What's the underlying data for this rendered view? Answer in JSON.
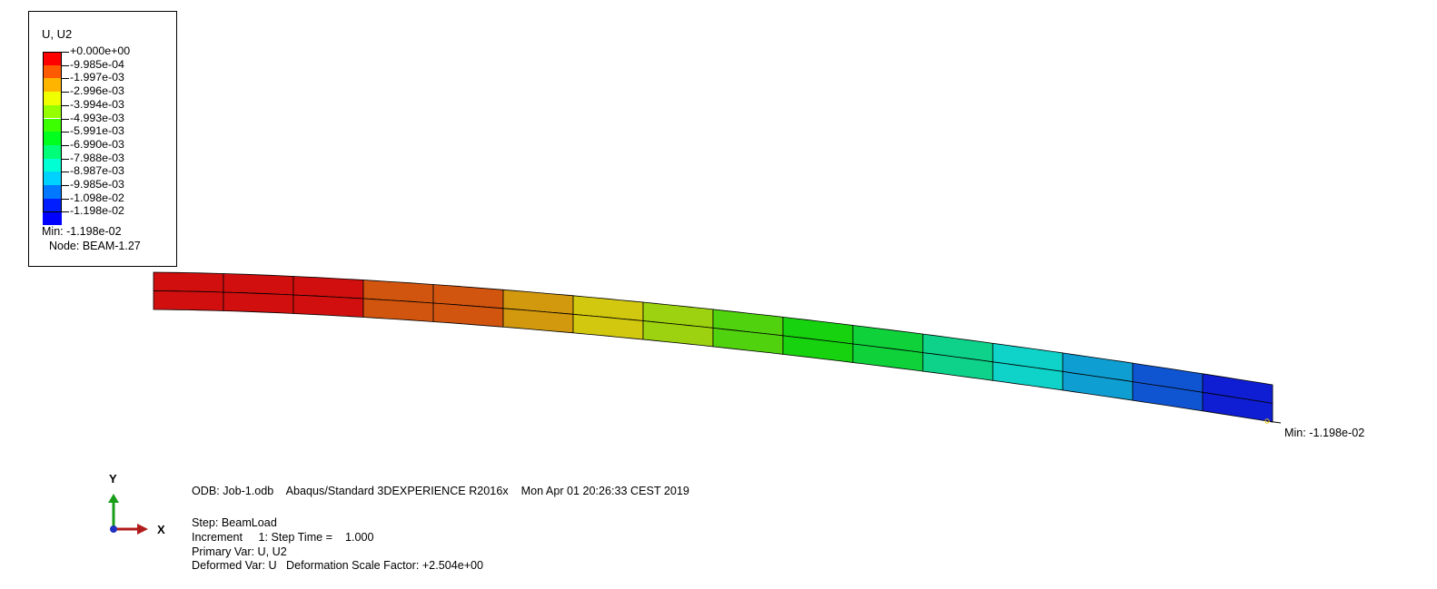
{
  "legend": {
    "title": "U, U2",
    "entries": [
      {
        "label": "+0.000e+00",
        "color": "#ff0000"
      },
      {
        "label": "-9.985e-04",
        "color": "#ff5a00"
      },
      {
        "label": "-1.997e-03",
        "color": "#ffb400"
      },
      {
        "label": "-2.996e-03",
        "color": "#f0ff00"
      },
      {
        "label": "-3.994e-03",
        "color": "#96ff00"
      },
      {
        "label": "-4.993e-03",
        "color": "#3cff00"
      },
      {
        "label": "-5.991e-03",
        "color": "#00ff1e"
      },
      {
        "label": "-6.990e-03",
        "color": "#00ff78"
      },
      {
        "label": "-7.988e-03",
        "color": "#00ffd2"
      },
      {
        "label": "-8.987e-03",
        "color": "#00d2ff"
      },
      {
        "label": "-9.985e-03",
        "color": "#0078ff"
      },
      {
        "label": "-1.098e-02",
        "color": "#001eff"
      },
      {
        "label": "-1.198e-02",
        "color": "#0000ff"
      }
    ],
    "min_text": "Min: -1.198e-02",
    "node_text": "Node: BEAM-1.27"
  },
  "beam": {
    "element_colors": [
      "#d20f0f",
      "#d20f0f",
      "#d20f0f",
      "#d2550f",
      "#d2550f",
      "#d2990f",
      "#d2c80f",
      "#9cd20f",
      "#50d20f",
      "#17d20f",
      "#0fd23a",
      "#0fd28a",
      "#0fd2c8",
      "#0f9ed2",
      "#0f55d2",
      "#0f1ed2"
    ],
    "min_annotation": "Min: -1.198e-02"
  },
  "triad": {
    "x_label": "X",
    "y_label": "Y"
  },
  "info": {
    "odb_line": "ODB: Job-1.odb    Abaqus/Standard 3DEXPERIENCE R2016x    Mon Apr 01 20:26:33 CEST 2019",
    "step_line": "Step: BeamLoad",
    "increment_line": "Increment     1: Step Time =    1.000",
    "primary_line": "Primary Var: U, U2",
    "deformed_line": "Deformed Var: U   Deformation Scale Factor: +2.504e+00"
  }
}
